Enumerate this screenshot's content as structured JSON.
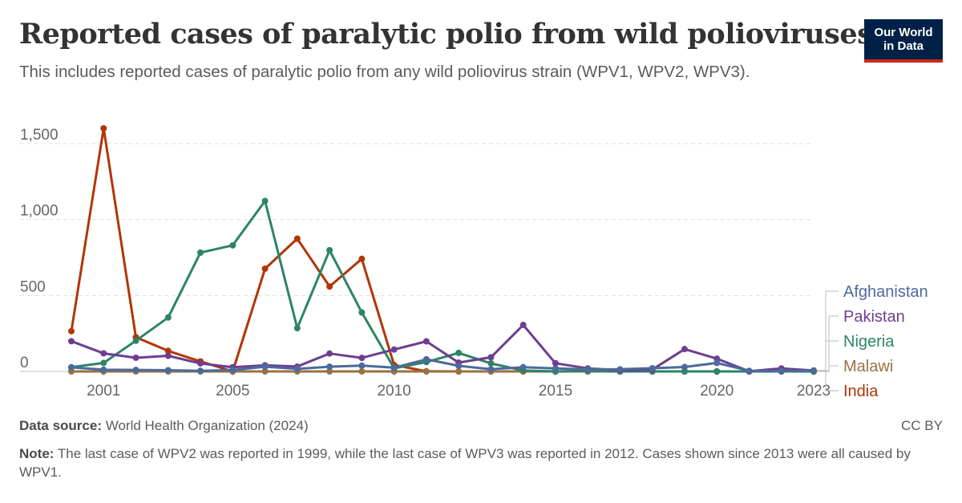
{
  "header": {
    "title": "Reported cases of paralytic polio from wild polioviruses",
    "subtitle": "This includes reported cases of paralytic polio from any wild poliovirus strain (WPV1, WPV2, WPV3).",
    "logo_line1": "Our World",
    "logo_line2": "in Data"
  },
  "footer": {
    "source_label": "Data source:",
    "source_text": "World Health Organization (2024)",
    "license": "CC BY",
    "note_label": "Note:",
    "note_text": "The last case of WPV2 was reported in 1999, while the last case of WPV3 was reported in 2012. Cases shown since 2013 were all caused by WPV1."
  },
  "chart_data": {
    "type": "line",
    "x": [
      2000,
      2001,
      2002,
      2003,
      2004,
      2005,
      2006,
      2007,
      2008,
      2009,
      2010,
      2011,
      2012,
      2013,
      2014,
      2015,
      2016,
      2017,
      2018,
      2019,
      2020,
      2021,
      2022,
      2023
    ],
    "x_ticks": [
      2001,
      2005,
      2010,
      2015,
      2020,
      2023
    ],
    "y_ticks": [
      0,
      500,
      1000,
      1500
    ],
    "y_tick_labels": [
      "0",
      "500",
      "1,000",
      "1,500"
    ],
    "xlim": [
      2000,
      2023
    ],
    "ylim": [
      0,
      1600
    ],
    "grid": "horizontal dashed",
    "legend": "right, labels at line ends",
    "series": [
      {
        "name": "India",
        "color": "#b13507",
        "values": [
          265,
          1600,
          225,
          135,
          66,
          0,
          676,
          874,
          559,
          741,
          42,
          1,
          0,
          0,
          0,
          0,
          0,
          0,
          0,
          0,
          0,
          0,
          0,
          0
        ]
      },
      {
        "name": "Malawi",
        "color": "#9a7143",
        "values": [
          0,
          0,
          0,
          0,
          0,
          0,
          0,
          0,
          0,
          0,
          0,
          0,
          0,
          0,
          0,
          0,
          0,
          0,
          0,
          0,
          0,
          0,
          1,
          0
        ]
      },
      {
        "name": "Nigeria",
        "color": "#2c8465",
        "values": [
          28,
          56,
          202,
          355,
          782,
          830,
          1122,
          285,
          798,
          388,
          21,
          62,
          122,
          53,
          6,
          0,
          4,
          0,
          0,
          0,
          0,
          0,
          0,
          0
        ]
      },
      {
        "name": "Pakistan",
        "color": "#6d3e91",
        "values": [
          199,
          119,
          90,
          103,
          53,
          28,
          40,
          32,
          118,
          89,
          144,
          198,
          58,
          93,
          306,
          54,
          20,
          8,
          12,
          147,
          84,
          1,
          20,
          6
        ]
      },
      {
        "name": "Afghanistan",
        "color": "#4c6a9c",
        "values": [
          27,
          11,
          10,
          8,
          4,
          9,
          31,
          17,
          31,
          38,
          25,
          80,
          37,
          14,
          28,
          20,
          13,
          14,
          21,
          29,
          56,
          4,
          2,
          6
        ]
      }
    ]
  }
}
